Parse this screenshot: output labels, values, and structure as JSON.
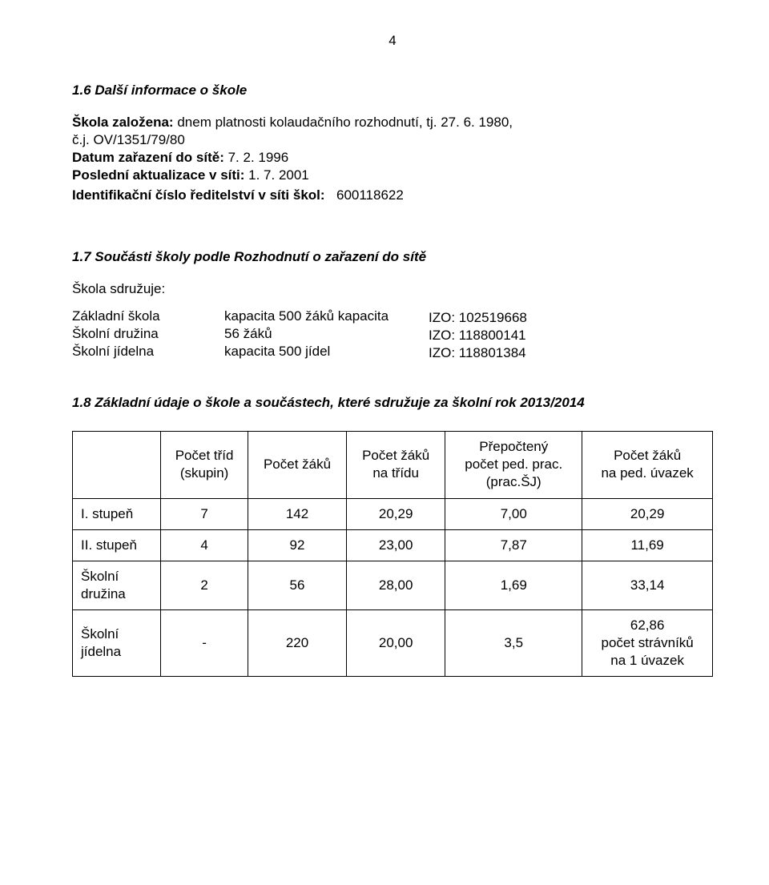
{
  "page_number": "4",
  "section_1_6": {
    "heading": "1.6  Další informace o škole",
    "line1_label": "Škola založena:",
    "line1_rest": " dnem platnosti kolaudačního rozhodnutí, tj. 27. 6. 1980,",
    "line1_cont": "č.j. OV/1351/79/80",
    "line2_label": "Datum zařazení do sítě:",
    "line2_rest": " 7. 2. 1996",
    "line3_label": "Poslední aktualizace v síti:",
    "line3_rest": " 1. 7. 2001",
    "line4_label": "Identifikační číslo ředitelství v síti škol:",
    "line4_value": "600118622"
  },
  "section_1_7": {
    "heading": "1.7  Součásti školy podle Rozhodnutí o zařazení do sítě",
    "sdruzuje": "Škola sdružuje:",
    "rows": [
      {
        "name": "Základní  škola",
        "cap": "kapacita 500 žáků kapacita"
      },
      {
        "name": "Školní  družina",
        "cap": "56 žáků"
      },
      {
        "name": "Školní jídelna",
        "cap": "kapacita 500 jídel"
      }
    ],
    "izo": [
      "IZO: 102519668",
      "IZO: 118800141",
      "IZO: 118801384"
    ]
  },
  "section_1_8": {
    "heading": "1.8  Základní údaje o škole a součástech, které sdružuje za školní rok 2013/2014",
    "columns": [
      "",
      "Počet tříd (skupin)",
      "Počet žáků",
      "Počet žáků na třídu",
      "Přepočtený počet ped. prac. (prac.ŠJ)",
      "Počet žáků na ped. úvazek"
    ],
    "col_headers_multiline": [
      "",
      "Počet tříd\n(skupin)",
      "Počet žáků",
      "Počet žáků\nna třídu",
      "Přepočtený\npočet ped. prac.\n(prac.ŠJ)",
      "Počet žáků\nna ped. úvazek"
    ],
    "rows": [
      {
        "label": "I. stupeň",
        "c1": "7",
        "c2": "142",
        "c3": "20,29",
        "c4": "7,00",
        "c5": "20,29"
      },
      {
        "label": "II. stupeň",
        "c1": "4",
        "c2": "92",
        "c3": "23,00",
        "c4": "7,87",
        "c5": "11,69"
      },
      {
        "label": "Školní\ndružina",
        "c1": "2",
        "c2": "56",
        "c3": "28,00",
        "c4": "1,69",
        "c5": "33,14"
      },
      {
        "label": "Školní\njídelna",
        "c1": "-",
        "c2": "220",
        "c3": "20,00",
        "c4": "3,5",
        "c5": "62,86\npočet strávníků\nna 1 úvazek"
      }
    ]
  }
}
